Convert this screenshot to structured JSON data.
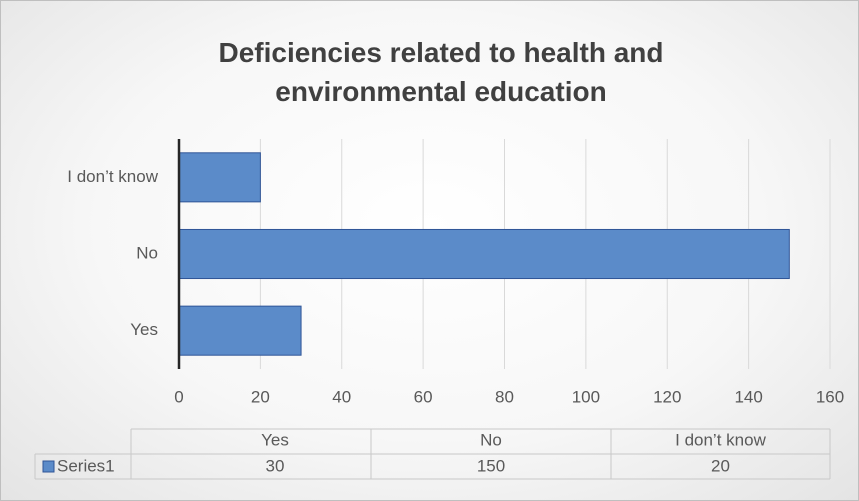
{
  "chart_data": {
    "type": "bar",
    "orientation": "horizontal",
    "title": "Deficiencies related to health and environmental education",
    "categories": [
      "Yes",
      "No",
      "I don’t know"
    ],
    "series": [
      {
        "name": "Series1",
        "color": "#5b8bc9",
        "values": [
          30,
          150,
          20
        ]
      }
    ],
    "xlim": [
      0,
      160
    ],
    "xticks": [
      0,
      20,
      40,
      60,
      80,
      100,
      120,
      140,
      160
    ],
    "grid": true,
    "data_table": true
  }
}
